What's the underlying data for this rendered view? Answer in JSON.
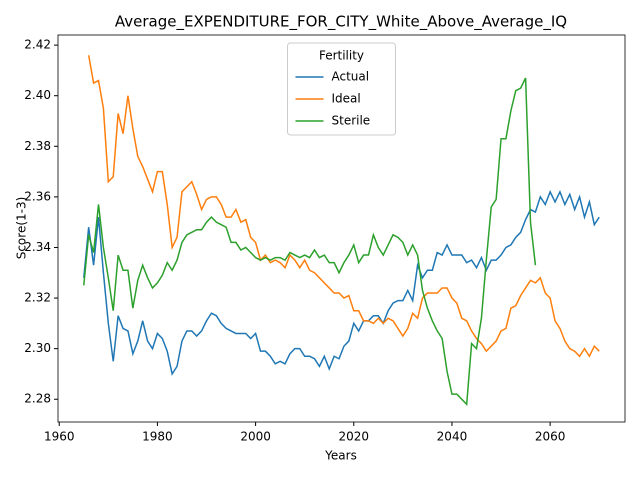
{
  "chart_data": {
    "type": "line",
    "title": "Average_EXPENDITURE_FOR_CITY_White_Above_Average_IQ",
    "x_label": "Years",
    "y_label": "Score(1-3)",
    "legend_title": "Fertility",
    "legend_position": "upper center",
    "xlim": [
      1959.75,
      2075.25
    ],
    "xticks": [
      1960,
      1980,
      2000,
      2020,
      2040,
      2060
    ],
    "ylim": [
      2.271,
      2.424
    ],
    "yticks": [
      2.28,
      {
        "value": 2.3,
        "label": "2.30"
      },
      2.32,
      2.34,
      2.36,
      2.38,
      {
        "value": 2.4,
        "label": "2.40"
      },
      2.42
    ],
    "x": [
      1965,
      1966,
      1967,
      1968,
      1969,
      1970,
      1971,
      1972,
      1973,
      1974,
      1975,
      1976,
      1977,
      1978,
      1979,
      1980,
      1981,
      1982,
      1983,
      1984,
      1985,
      1986,
      1987,
      1988,
      1989,
      1990,
      1991,
      1992,
      1993,
      1994,
      1995,
      1996,
      1997,
      1998,
      1999,
      2000,
      2001,
      2002,
      2003,
      2004,
      2005,
      2006,
      2007,
      2008,
      2009,
      2010,
      2011,
      2012,
      2013,
      2014,
      2015,
      2016,
      2017,
      2018,
      2019,
      2020,
      2021,
      2022,
      2023,
      2024,
      2025,
      2026,
      2027,
      2028,
      2029,
      2030,
      2031,
      2032,
      2033,
      2034,
      2035,
      2036,
      2037,
      2038,
      2039,
      2040,
      2041,
      2042,
      2043,
      2044,
      2045,
      2046,
      2047,
      2048,
      2049,
      2050,
      2051,
      2052,
      2053,
      2054,
      2055,
      2056,
      2057,
      2058,
      2059,
      2060,
      2061,
      2062,
      2063,
      2064,
      2065,
      2066,
      2067,
      2068,
      2069,
      2070
    ],
    "series": [
      {
        "name": "Actual",
        "color": "#1f77b4",
        "values": [
          2.328,
          2.348,
          2.333,
          2.352,
          2.33,
          2.31,
          2.295,
          2.313,
          2.308,
          2.307,
          2.298,
          2.303,
          2.311,
          2.303,
          2.3,
          2.306,
          2.304,
          2.299,
          2.29,
          2.293,
          2.303,
          2.307,
          2.307,
          2.305,
          2.307,
          2.311,
          2.314,
          2.313,
          2.31,
          2.308,
          2.307,
          2.306,
          2.306,
          2.306,
          2.304,
          2.306,
          2.299,
          2.299,
          2.297,
          2.294,
          2.295,
          2.294,
          2.298,
          2.3,
          2.3,
          2.297,
          2.297,
          2.296,
          2.293,
          2.297,
          2.292,
          2.297,
          2.296,
          2.301,
          2.303,
          2.31,
          2.307,
          2.311,
          2.311,
          2.313,
          2.313,
          2.31,
          2.315,
          2.318,
          2.319,
          2.319,
          2.323,
          2.319,
          2.333,
          2.328,
          2.331,
          2.331,
          2.338,
          2.337,
          2.341,
          2.337,
          2.337,
          2.337,
          2.334,
          2.335,
          2.332,
          2.336,
          2.331,
          2.335,
          2.335,
          2.337,
          2.34,
          2.341,
          2.344,
          2.346,
          2.351,
          2.355,
          2.354,
          2.36,
          2.357,
          2.362,
          2.358,
          2.362,
          2.357,
          2.361,
          2.355,
          2.36,
          2.352,
          2.358,
          2.349,
          2.352
        ]
      },
      {
        "name": "Ideal",
        "color": "#ff7f0e",
        "values": [
          null,
          2.416,
          2.405,
          2.406,
          2.395,
          2.366,
          2.368,
          2.393,
          2.385,
          2.4,
          2.387,
          2.376,
          2.372,
          2.367,
          2.362,
          2.37,
          2.37,
          2.357,
          2.34,
          2.344,
          2.362,
          2.364,
          2.366,
          2.361,
          2.355,
          2.359,
          2.36,
          2.36,
          2.357,
          2.352,
          2.352,
          2.355,
          2.35,
          2.351,
          2.344,
          2.342,
          2.335,
          2.337,
          2.334,
          2.335,
          2.334,
          2.332,
          2.337,
          2.335,
          2.332,
          2.335,
          2.331,
          2.33,
          2.328,
          2.326,
          2.324,
          2.322,
          2.322,
          2.32,
          2.321,
          2.315,
          2.315,
          2.311,
          2.311,
          2.31,
          2.312,
          2.31,
          2.312,
          2.311,
          2.308,
          2.305,
          2.308,
          2.314,
          2.312,
          2.32,
          2.322,
          2.322,
          2.322,
          2.324,
          2.324,
          2.32,
          2.318,
          2.312,
          2.311,
          2.307,
          2.304,
          2.302,
          2.299,
          2.301,
          2.303,
          2.307,
          2.308,
          2.316,
          2.317,
          2.321,
          2.324,
          2.327,
          2.326,
          2.328,
          2.322,
          2.32,
          2.311,
          2.308,
          2.303,
          2.3,
          2.299,
          2.297,
          2.3,
          2.297,
          2.301,
          2.299
        ]
      },
      {
        "name": "Sterile",
        "color": "#2ca02c",
        "values": [
          2.325,
          2.345,
          2.338,
          2.357,
          2.34,
          2.328,
          2.315,
          2.337,
          2.331,
          2.331,
          2.316,
          2.327,
          2.333,
          2.328,
          2.324,
          2.326,
          2.329,
          2.334,
          2.331,
          2.335,
          2.342,
          2.345,
          2.346,
          2.347,
          2.347,
          2.35,
          2.352,
          2.35,
          2.349,
          2.348,
          2.342,
          2.342,
          2.339,
          2.34,
          2.338,
          2.336,
          2.335,
          2.336,
          2.335,
          2.336,
          2.336,
          2.335,
          2.338,
          2.337,
          2.336,
          2.337,
          2.336,
          2.339,
          2.336,
          2.337,
          2.334,
          2.334,
          2.33,
          2.334,
          2.337,
          2.341,
          2.334,
          2.337,
          2.337,
          2.345,
          2.34,
          2.337,
          2.341,
          2.345,
          2.344,
          2.342,
          2.337,
          2.341,
          2.337,
          2.323,
          2.316,
          2.311,
          2.307,
          2.304,
          2.291,
          2.282,
          2.282,
          2.28,
          2.278,
          2.302,
          2.3,
          2.312,
          2.335,
          2.356,
          2.359,
          2.383,
          2.383,
          2.394,
          2.402,
          2.403,
          2.407,
          2.35,
          2.333,
          null,
          null,
          null,
          null,
          null,
          null,
          null,
          null,
          null,
          null,
          null,
          null,
          null
        ]
      }
    ]
  }
}
